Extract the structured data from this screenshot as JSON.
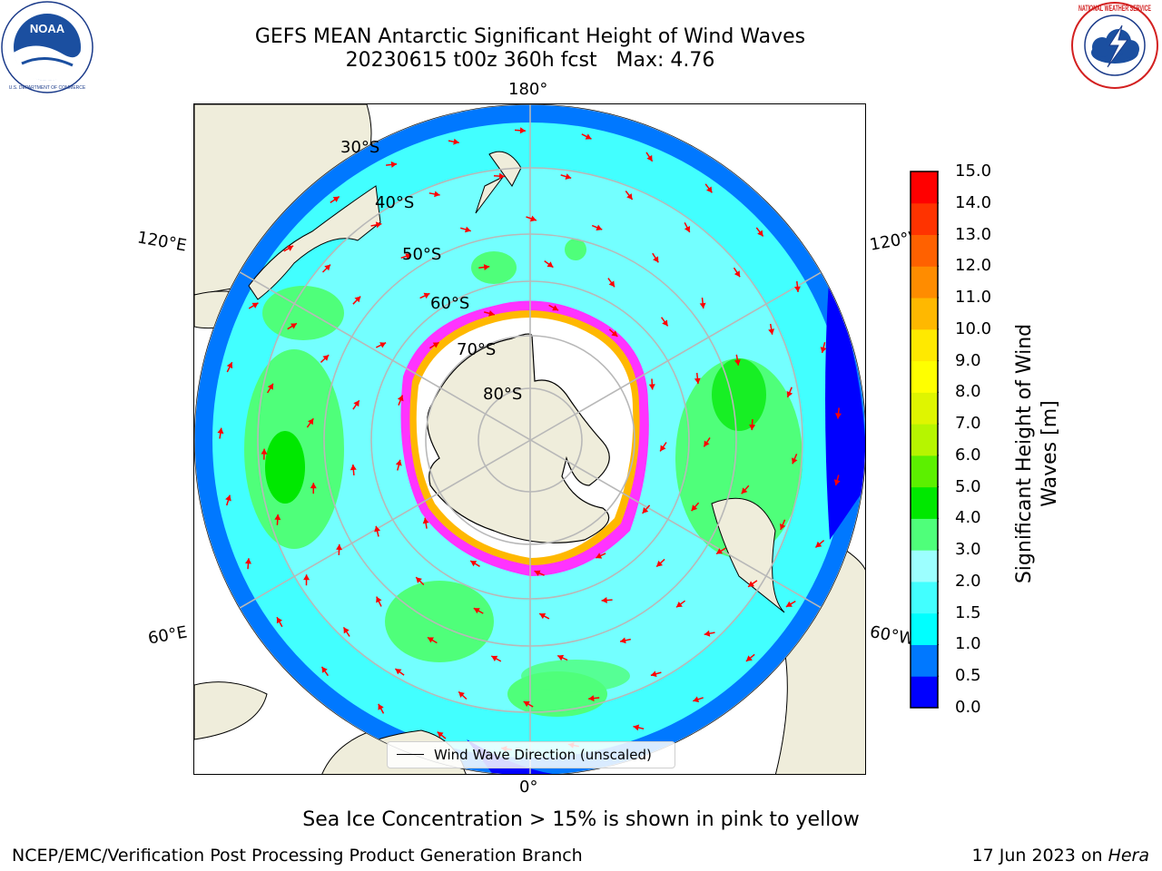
{
  "title": {
    "line1": "GEFS MEAN Antarctic Significant Height of Wind Waves",
    "line2": "20230615 t00z 360h fcst   Max: 4.76"
  },
  "logos": {
    "noaa": {
      "text": "NOAA",
      "ring": "NATIONAL OCEANIC AND ATMOSPHERIC ADMINISTRATION",
      "bottom": "U.S. DEPARTMENT OF COMMERCE"
    },
    "nws": {
      "ring": "NATIONAL WEATHER SERVICE"
    }
  },
  "map": {
    "projection": "south-polar-stereographic",
    "meridian_labels": {
      "top": "180°",
      "bottom": "0°",
      "left_upper": "120°E",
      "left_lower": "60°E",
      "right_upper": "120°W",
      "right_lower": "60°W"
    },
    "latitude_labels": [
      "30°S",
      "40°S",
      "50°S",
      "60°S",
      "70°S",
      "80°S"
    ],
    "legend": "Wind Wave Direction (unscaled)",
    "land_color": "#efeddb",
    "ice_free_color": "#ffffff",
    "arrow_color": "#ff0000",
    "grid_color": "#b8b8b8"
  },
  "colorbar": {
    "label": "Significant Height of Wind Waves [m]",
    "ticks": [
      "0.0",
      "0.5",
      "1.0",
      "1.5",
      "2.0",
      "3.0",
      "4.0",
      "5.0",
      "6.0",
      "7.0",
      "8.0",
      "9.0",
      "10.0",
      "11.0",
      "12.0",
      "13.0",
      "14.0",
      "15.0"
    ],
    "colors": [
      "#0000ff",
      "#0078ff",
      "#00ffff",
      "#42ffff",
      "#9cffff",
      "#4fff7a",
      "#00e800",
      "#5cf000",
      "#b6f500",
      "#dff500",
      "#ffff00",
      "#ffe900",
      "#ffb800",
      "#ff8c00",
      "#ff6100",
      "#ff3300",
      "#ff0000"
    ]
  },
  "sea_ice_note": "Sea Ice Concentration > 15% is shown in pink to yellow",
  "footer": {
    "left": "NCEP/EMC/Verification Post Processing Product Generation Branch",
    "right_prefix": "17 Jun 2023 on ",
    "right_host": "Hera"
  }
}
